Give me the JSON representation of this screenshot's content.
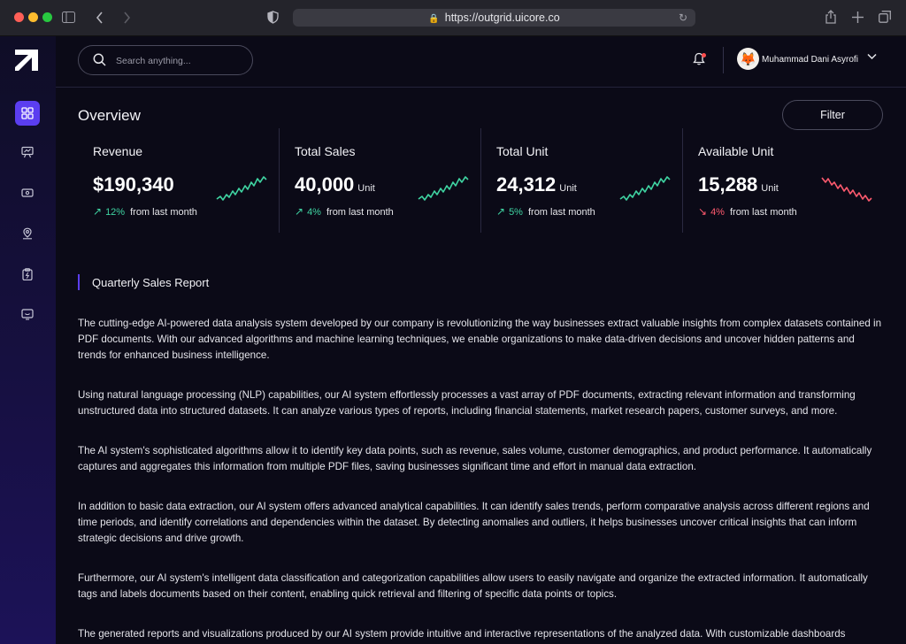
{
  "browser": {
    "url": "https://outgrid.uicore.co",
    "colors": {
      "close": "#ff5f57",
      "minimize": "#febc2e",
      "maximize": "#28c840"
    }
  },
  "header": {
    "search_placeholder": "Search anything...",
    "user_name": "Muhammad Dani Asyrofi",
    "avatar_icon": "fox-emoji"
  },
  "sidebar": {
    "items": [
      {
        "icon": "dashboard-icon",
        "active": true
      },
      {
        "icon": "presentation-chart-icon",
        "active": false
      },
      {
        "icon": "money-transfer-icon",
        "active": false
      },
      {
        "icon": "location-pin-icon",
        "active": false
      },
      {
        "icon": "clipboard-bolt-icon",
        "active": false
      },
      {
        "icon": "message-smile-icon",
        "active": false
      }
    ]
  },
  "overview": {
    "title": "Overview",
    "filter_label": "Filter",
    "cards": [
      {
        "title": "Revenue",
        "value": "$190,340",
        "unit": "",
        "trend_arrow": "↗",
        "change": "12%",
        "change_text": "from last month",
        "color": "#3fd4a2"
      },
      {
        "title": "Total Sales",
        "value": "40,000",
        "unit": "Unit",
        "trend_arrow": "↗",
        "change": "4%",
        "change_text": "from last month",
        "color": "#3fd4a2"
      },
      {
        "title": "Total Unit",
        "value": "24,312",
        "unit": "Unit",
        "trend_arrow": "↗",
        "change": "5%",
        "change_text": "from last month",
        "color": "#3fd4a2"
      },
      {
        "title": "Available Unit",
        "value": "15,288",
        "unit": "Unit",
        "trend_arrow": "↘",
        "change": "4%",
        "change_text": "from last month",
        "color": "#ff5a6e"
      }
    ]
  },
  "report": {
    "title": "Quarterly Sales Report",
    "paragraphs": [
      "The cutting-edge AI-powered data analysis system developed by our company is revolutionizing the way businesses extract valuable insights from complex datasets contained in PDF documents. With our advanced algorithms and machine learning techniques, we enable organizations to make data-driven decisions and uncover hidden patterns and trends for enhanced business intelligence.",
      "Using natural language processing (NLP) capabilities, our AI system effortlessly processes a vast array of PDF documents, extracting relevant information and transforming unstructured data into structured datasets. It can analyze various types of reports, including financial statements, market research papers, customer surveys, and more.",
      "The AI system's sophisticated algorithms allow it to identify key data points, such as revenue, sales volume, customer demographics, and product performance. It automatically captures and aggregates this information from multiple PDF files, saving businesses significant time and effort in manual data extraction.",
      "In addition to basic data extraction, our AI system offers advanced analytical capabilities. It can identify sales trends, perform comparative analysis across different regions and time periods, and identify correlations and dependencies within the dataset. By detecting anomalies and outliers, it helps businesses uncover critical insights that can inform strategic decisions and drive growth.",
      "Furthermore, our AI system's intelligent data classification and categorization capabilities allow users to easily navigate and organize the extracted information. It automatically tags and labels documents based on their content, enabling quick retrieval and filtering of specific data points or topics.",
      "The generated reports and visualizations produced by our AI system provide intuitive and interactive representations of the analyzed data. With customizable dashboards"
    ]
  }
}
